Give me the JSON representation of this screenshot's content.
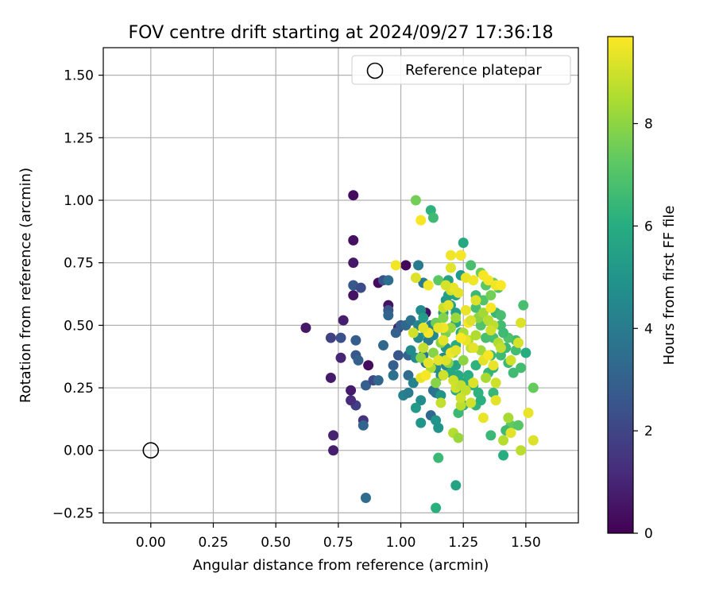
{
  "chart_data": {
    "type": "scatter",
    "title": "FOV centre drift starting at 2024/09/27 17:36:18",
    "xlabel": "Angular distance from reference (arcmin)",
    "ylabel": "Rotation from reference (arcmin)",
    "xlim": [
      -0.19,
      1.71
    ],
    "ylim": [
      -0.29,
      1.61
    ],
    "xticks": [
      "0.00",
      "0.25",
      "0.50",
      "0.75",
      "1.00",
      "1.25",
      "1.50"
    ],
    "xtick_values": [
      0,
      0.25,
      0.5,
      0.75,
      1.0,
      1.25,
      1.5
    ],
    "yticks": [
      "−0.25",
      "0.00",
      "0.25",
      "0.50",
      "0.75",
      "1.00",
      "1.25",
      "1.50"
    ],
    "ytick_values": [
      -0.25,
      0,
      0.25,
      0.5,
      0.75,
      1.0,
      1.25,
      1.5
    ],
    "grid": true,
    "legend": {
      "position": "top-right",
      "entries": [
        "Reference platepar"
      ]
    },
    "reference_point": {
      "name": "Reference platepar",
      "x": 0.0,
      "y": 0.0
    },
    "colorbar": {
      "label": "Hours from first FF file",
      "colormap": "viridis",
      "range": [
        0,
        9.7
      ],
      "ticks": [
        "0",
        "2",
        "4",
        "6",
        "8"
      ],
      "tick_values": [
        0,
        2,
        4,
        6,
        8
      ]
    },
    "series": [
      {
        "points": [
          [
            0.81,
            1.02,
            0.3
          ],
          [
            0.81,
            0.84,
            0.4
          ],
          [
            0.81,
            0.75,
            0.6
          ],
          [
            0.81,
            0.62,
            0.5
          ],
          [
            0.62,
            0.49,
            0.6
          ],
          [
            0.77,
            0.52,
            0.8
          ],
          [
            0.72,
            0.29,
            0.7
          ],
          [
            0.73,
            0.06,
            0.9
          ],
          [
            0.73,
            0.0,
            0.8
          ],
          [
            0.8,
            0.24,
            0.7
          ],
          [
            0.76,
            0.37,
            1.0
          ],
          [
            0.87,
            0.34,
            0.3
          ],
          [
            0.95,
            0.58,
            0.5
          ],
          [
            0.91,
            0.67,
            0.3
          ],
          [
            1.02,
            0.74,
            0.2
          ],
          [
            1.1,
            0.55,
            0.4
          ],
          [
            0.99,
            0.49,
            0.8
          ],
          [
            0.85,
            0.12,
            1.4
          ],
          [
            0.82,
            0.18,
            1.8
          ],
          [
            0.8,
            0.2,
            1.2
          ],
          [
            0.72,
            0.45,
            1.9
          ],
          [
            0.76,
            0.45,
            2.4
          ],
          [
            0.81,
            0.66,
            2.7
          ],
          [
            0.84,
            0.65,
            2.2
          ],
          [
            0.93,
            0.68,
            2.5
          ],
          [
            0.95,
            0.68,
            3.5
          ],
          [
            0.82,
            0.44,
            2.8
          ],
          [
            0.82,
            0.38,
            2.6
          ],
          [
            0.83,
            0.36,
            3.0
          ],
          [
            0.86,
            0.26,
            2.9
          ],
          [
            0.89,
            0.28,
            2.1
          ],
          [
            0.85,
            0.1,
            3.1
          ],
          [
            0.86,
            -0.19,
            3.4
          ],
          [
            0.91,
            0.28,
            3.2
          ],
          [
            0.93,
            0.42,
            3.3
          ],
          [
            0.95,
            0.56,
            2.6
          ],
          [
            0.95,
            0.54,
            3.1
          ],
          [
            0.98,
            0.47,
            3.0
          ],
          [
            0.97,
            0.34,
            2.9
          ],
          [
            0.97,
            0.3,
            3.6
          ],
          [
            0.99,
            0.38,
            2.6
          ],
          [
            1.0,
            0.5,
            2.8
          ],
          [
            1.02,
            0.5,
            3.2
          ],
          [
            1.03,
            0.38,
            3.1
          ],
          [
            1.04,
            0.52,
            3.6
          ],
          [
            1.03,
            0.3,
            3.4
          ],
          [
            1.07,
            0.74,
            3.9
          ],
          [
            1.07,
            0.5,
            4.4
          ],
          [
            1.09,
            0.38,
            3.8
          ],
          [
            1.09,
            0.67,
            4.0
          ],
          [
            1.01,
            0.22,
            4.3
          ],
          [
            1.03,
            0.23,
            4.0
          ],
          [
            1.05,
            0.27,
            4.3
          ],
          [
            1.04,
            0.4,
            4.6
          ],
          [
            1.06,
            0.37,
            4.6
          ],
          [
            1.07,
            0.45,
            4.5
          ],
          [
            1.08,
            0.56,
            4.6
          ],
          [
            1.1,
            0.35,
            3.6
          ],
          [
            1.12,
            0.14,
            3.3
          ],
          [
            1.13,
            0.24,
            3.6
          ],
          [
            1.14,
            0.23,
            3.7
          ],
          [
            1.14,
            0.33,
            4.6
          ],
          [
            1.11,
            0.44,
            3.9
          ],
          [
            1.12,
            0.5,
            4.3
          ],
          [
            1.13,
            0.46,
            4.5
          ],
          [
            1.1,
            0.47,
            5.0
          ],
          [
            1.09,
            0.53,
            5.3
          ],
          [
            1.08,
            0.2,
            4.7
          ],
          [
            1.06,
            0.17,
            5.2
          ],
          [
            1.08,
            0.11,
            5.0
          ],
          [
            1.14,
            0.12,
            5.0
          ],
          [
            1.15,
            0.09,
            5.0
          ],
          [
            1.16,
            0.22,
            5.0
          ],
          [
            1.16,
            0.3,
            4.5
          ],
          [
            1.18,
            0.34,
            4.5
          ],
          [
            1.17,
            0.37,
            4.6
          ],
          [
            1.18,
            0.41,
            5.1
          ],
          [
            1.17,
            0.55,
            5.2
          ],
          [
            1.18,
            0.6,
            5.1
          ],
          [
            1.19,
            0.62,
            5.3
          ],
          [
            1.2,
            0.58,
            5.5
          ],
          [
            1.22,
            0.55,
            5.4
          ],
          [
            1.19,
            0.68,
            5.5
          ],
          [
            1.22,
            0.62,
            5.5
          ],
          [
            1.24,
            0.7,
            5.2
          ],
          [
            1.24,
            0.78,
            5.6
          ],
          [
            1.25,
            0.83,
            5.8
          ],
          [
            1.22,
            0.51,
            5.8
          ],
          [
            1.24,
            0.47,
            5.8
          ],
          [
            1.22,
            0.42,
            6.0
          ],
          [
            1.2,
            0.31,
            5.8
          ],
          [
            1.22,
            0.34,
            5.6
          ],
          [
            1.23,
            0.3,
            5.9
          ],
          [
            1.22,
            0.24,
            5.9
          ],
          [
            1.25,
            0.18,
            6.0
          ],
          [
            1.23,
            0.15,
            6.5
          ],
          [
            1.25,
            0.27,
            5.8
          ],
          [
            1.27,
            0.3,
            6.0
          ],
          [
            1.3,
            0.34,
            6.2
          ],
          [
            1.29,
            0.26,
            6.0
          ],
          [
            1.3,
            0.18,
            6.3
          ],
          [
            1.31,
            0.23,
            6.2
          ],
          [
            1.32,
            0.2,
            6.1
          ],
          [
            1.36,
            0.06,
            6.5
          ],
          [
            1.37,
            0.23,
            6.4
          ],
          [
            1.35,
            0.31,
            6.4
          ],
          [
            1.37,
            0.33,
            6.3
          ],
          [
            1.36,
            0.38,
            6.5
          ],
          [
            1.4,
            0.38,
            6.6
          ],
          [
            1.42,
            0.41,
            6.5
          ],
          [
            1.43,
            0.35,
            6.5
          ],
          [
            1.45,
            0.31,
            6.6
          ],
          [
            1.46,
            0.4,
            6.7
          ],
          [
            1.48,
            0.33,
            6.7
          ],
          [
            1.46,
            0.44,
            6.6
          ],
          [
            1.43,
            0.45,
            6.9
          ],
          [
            1.4,
            0.5,
            6.7
          ],
          [
            1.38,
            0.55,
            6.5
          ],
          [
            1.4,
            0.54,
            6.8
          ],
          [
            1.41,
            0.47,
            6.6
          ],
          [
            1.37,
            0.45,
            6.8
          ],
          [
            1.34,
            0.45,
            6.8
          ],
          [
            1.32,
            0.5,
            7.0
          ],
          [
            1.3,
            0.57,
            6.8
          ],
          [
            1.33,
            0.6,
            7.0
          ],
          [
            1.3,
            0.62,
            6.5
          ],
          [
            1.28,
            0.74,
            6.8
          ],
          [
            1.32,
            0.71,
            7.5
          ],
          [
            1.34,
            0.66,
            7.2
          ],
          [
            1.36,
            0.62,
            7.6
          ],
          [
            1.37,
            0.67,
            7.4
          ],
          [
            1.39,
            0.65,
            7.0
          ],
          [
            1.49,
            0.58,
            6.8
          ],
          [
            1.5,
            0.39,
            6.0
          ],
          [
            1.53,
            0.25,
            7.4
          ],
          [
            1.41,
            -0.02,
            6.0
          ],
          [
            1.44,
            0.1,
            7.3
          ],
          [
            1.47,
            0.1,
            7.1
          ],
          [
            1.42,
            0.08,
            6.6
          ],
          [
            1.43,
            0.13,
            8.4
          ],
          [
            1.12,
            0.96,
            6.2
          ],
          [
            1.13,
            0.93,
            6.6
          ],
          [
            1.06,
            1.0,
            7.6
          ],
          [
            1.15,
            0.68,
            7.2
          ],
          [
            1.14,
            -0.23,
            6.1
          ],
          [
            1.15,
            -0.03,
            6.5
          ],
          [
            1.22,
            -0.14,
            5.6
          ],
          [
            1.08,
            0.37,
            8.0
          ],
          [
            1.12,
            0.33,
            8.5
          ],
          [
            1.14,
            0.27,
            7.9
          ],
          [
            1.13,
            0.39,
            7.9
          ],
          [
            1.16,
            0.43,
            8.0
          ],
          [
            1.18,
            0.47,
            7.7
          ],
          [
            1.14,
            0.51,
            7.5
          ],
          [
            1.17,
            0.53,
            7.8
          ],
          [
            1.2,
            0.49,
            8.2
          ],
          [
            1.22,
            0.53,
            8.2
          ],
          [
            1.19,
            0.35,
            8.0
          ],
          [
            1.21,
            0.39,
            8.2
          ],
          [
            1.25,
            0.36,
            8.0
          ],
          [
            1.25,
            0.47,
            8.4
          ],
          [
            1.27,
            0.44,
            8.6
          ],
          [
            1.28,
            0.41,
            8.8
          ],
          [
            1.3,
            0.46,
            8.5
          ],
          [
            1.32,
            0.4,
            8.3
          ],
          [
            1.31,
            0.53,
            8.0
          ],
          [
            1.33,
            0.55,
            8.3
          ],
          [
            1.35,
            0.52,
            8.6
          ],
          [
            1.37,
            0.5,
            8.7
          ],
          [
            1.36,
            0.48,
            9.0
          ],
          [
            1.39,
            0.43,
            8.5
          ],
          [
            1.4,
            0.41,
            8.8
          ],
          [
            1.44,
            0.36,
            9.0
          ],
          [
            1.47,
            0.43,
            9.1
          ],
          [
            1.48,
            0.51,
            9.2
          ],
          [
            1.48,
            0.0,
            8.7
          ],
          [
            1.44,
            0.07,
            9.3
          ],
          [
            1.51,
            0.15,
            9.4
          ],
          [
            1.53,
            0.04,
            9.2
          ],
          [
            1.38,
            0.2,
            9.3
          ],
          [
            1.38,
            0.27,
            9.0
          ],
          [
            1.34,
            0.29,
            8.4
          ],
          [
            1.33,
            0.13,
            9.4
          ],
          [
            1.28,
            0.19,
            9.0
          ],
          [
            1.24,
            0.18,
            8.7
          ],
          [
            1.24,
            0.21,
            9.0
          ],
          [
            1.22,
            0.25,
            9.0
          ],
          [
            1.24,
            0.26,
            8.8
          ],
          [
            1.21,
            0.28,
            9.0
          ],
          [
            1.18,
            0.36,
            9.2
          ],
          [
            1.17,
            0.3,
            9.0
          ],
          [
            1.15,
            0.36,
            9.3
          ],
          [
            1.17,
            0.44,
            9.3
          ],
          [
            1.17,
            0.49,
            9.5
          ],
          [
            1.15,
            0.49,
            9.4
          ],
          [
            1.17,
            0.57,
            8.9
          ],
          [
            1.19,
            0.58,
            9.3
          ],
          [
            1.2,
            0.64,
            9.0
          ],
          [
            1.21,
            0.65,
            9.4
          ],
          [
            1.23,
            0.63,
            9.3
          ],
          [
            1.18,
            0.66,
            9.1
          ],
          [
            1.2,
            0.73,
            9.3
          ],
          [
            1.2,
            0.78,
            9.5
          ],
          [
            1.24,
            0.78,
            9.6
          ],
          [
            1.26,
            0.69,
            9.4
          ],
          [
            1.29,
            0.68,
            9.5
          ],
          [
            1.33,
            0.7,
            9.6
          ],
          [
            1.35,
            0.68,
            9.6
          ],
          [
            1.38,
            0.66,
            9.5
          ],
          [
            1.4,
            0.66,
            9.7
          ],
          [
            1.36,
            0.57,
            9.6
          ],
          [
            1.3,
            0.6,
            9.2
          ],
          [
            1.26,
            0.56,
            9.4
          ],
          [
            1.27,
            0.51,
            9.6
          ],
          [
            1.28,
            0.52,
            9.2
          ],
          [
            1.26,
            0.44,
            9.4
          ],
          [
            1.29,
            0.41,
            9.3
          ],
          [
            1.33,
            0.36,
            9.3
          ],
          [
            1.37,
            0.34,
            9.4
          ],
          [
            1.35,
            0.38,
            9.6
          ],
          [
            1.2,
            0.39,
            9.5
          ],
          [
            1.22,
            0.4,
            9.3
          ],
          [
            1.24,
            0.45,
            9.7
          ],
          [
            1.11,
            0.47,
            9.6
          ],
          [
            1.11,
            0.35,
            9.3
          ],
          [
            1.08,
            0.29,
            9.4
          ],
          [
            1.1,
            0.3,
            9.6
          ],
          [
            1.06,
            0.69,
            9.2
          ],
          [
            1.11,
            0.66,
            9.5
          ],
          [
            0.98,
            0.74,
            9.5
          ],
          [
            1.08,
            0.92,
            9.6
          ],
          [
            1.05,
            0.47,
            9.0
          ],
          [
            1.09,
            0.49,
            9.3
          ],
          [
            1.09,
            0.41,
            8.8
          ],
          [
            1.21,
            0.07,
            8.6
          ],
          [
            1.23,
            0.05,
            8.2
          ],
          [
            1.26,
            0.24,
            8.8
          ],
          [
            1.29,
            0.27,
            9.2
          ],
          [
            1.41,
            0.04,
            8.6
          ],
          [
            1.16,
            0.19,
            8.8
          ]
        ]
      }
    ]
  }
}
